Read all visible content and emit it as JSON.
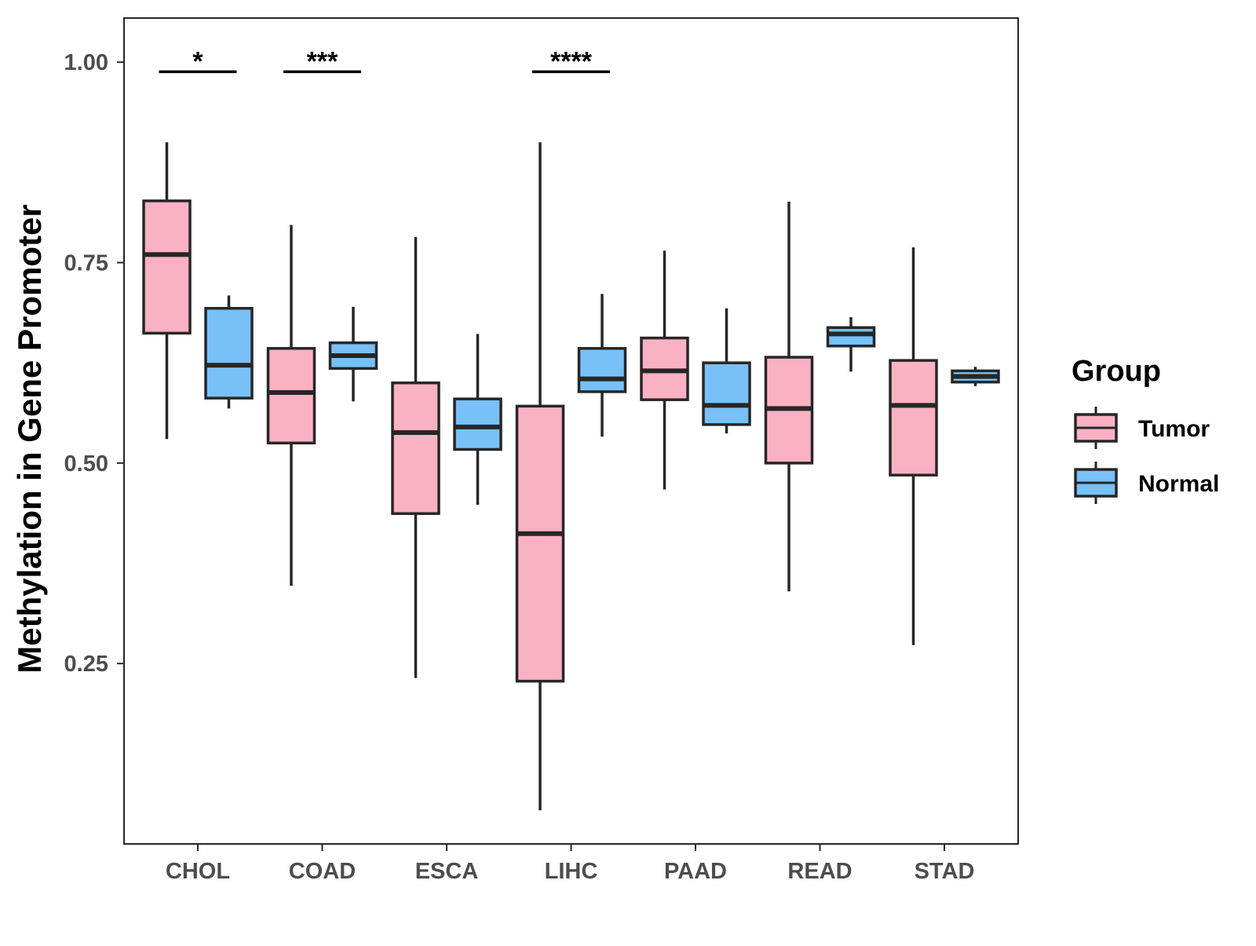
{
  "chart_data": {
    "type": "boxplot",
    "title": "",
    "xlabel": "",
    "ylabel": "Methylation in Gene Promoter",
    "ylim": [
      0.025,
      1.055
    ],
    "yticks": [
      0.25,
      0.5,
      0.75,
      1.0
    ],
    "ytick_labels": [
      "0.25",
      "0.50",
      "0.75",
      "1.00"
    ],
    "grid": false,
    "categories": [
      "CHOL",
      "COAD",
      "ESCA",
      "LIHC",
      "PAAD",
      "READ",
      "STAD"
    ],
    "legend": {
      "title": "Group",
      "position": "right",
      "entries": [
        {
          "name": "Tumor",
          "color": "#FBB1C4"
        },
        {
          "name": "Normal",
          "color": "#77C1F8"
        }
      ]
    },
    "series": [
      {
        "name": "Tumor",
        "color": "#FBB1C4",
        "boxes": [
          {
            "category": "CHOL",
            "whisker_low": 0.53,
            "q1": 0.662,
            "median": 0.76,
            "q3": 0.827,
            "whisker_high": 0.9
          },
          {
            "category": "COAD",
            "whisker_low": 0.347,
            "q1": 0.525,
            "median": 0.588,
            "q3": 0.643,
            "whisker_high": 0.797
          },
          {
            "category": "ESCA",
            "whisker_low": 0.232,
            "q1": 0.437,
            "median": 0.538,
            "q3": 0.6,
            "whisker_high": 0.782
          },
          {
            "category": "LIHC",
            "whisker_low": 0.067,
            "q1": 0.228,
            "median": 0.412,
            "q3": 0.571,
            "whisker_high": 0.9
          },
          {
            "category": "PAAD",
            "whisker_low": 0.467,
            "q1": 0.579,
            "median": 0.615,
            "q3": 0.656,
            "whisker_high": 0.765
          },
          {
            "category": "READ",
            "whisker_low": 0.34,
            "q1": 0.5,
            "median": 0.568,
            "q3": 0.632,
            "whisker_high": 0.826
          },
          {
            "category": "STAD",
            "whisker_low": 0.273,
            "q1": 0.485,
            "median": 0.572,
            "q3": 0.628,
            "whisker_high": 0.769
          }
        ]
      },
      {
        "name": "Normal",
        "color": "#77C1F8",
        "boxes": [
          {
            "category": "CHOL",
            "whisker_low": 0.568,
            "q1": 0.581,
            "median": 0.622,
            "q3": 0.693,
            "whisker_high": 0.709
          },
          {
            "category": "COAD",
            "whisker_low": 0.577,
            "q1": 0.618,
            "median": 0.634,
            "q3": 0.65,
            "whisker_high": 0.695
          },
          {
            "category": "ESCA",
            "whisker_low": 0.448,
            "q1": 0.517,
            "median": 0.545,
            "q3": 0.58,
            "whisker_high": 0.661
          },
          {
            "category": "LIHC",
            "whisker_low": 0.533,
            "q1": 0.589,
            "median": 0.605,
            "q3": 0.643,
            "whisker_high": 0.711
          },
          {
            "category": "PAAD",
            "whisker_low": 0.537,
            "q1": 0.548,
            "median": 0.572,
            "q3": 0.625,
            "whisker_high": 0.693
          },
          {
            "category": "READ",
            "whisker_low": 0.614,
            "q1": 0.646,
            "median": 0.661,
            "q3": 0.669,
            "whisker_high": 0.682
          },
          {
            "category": "STAD",
            "whisker_low": 0.596,
            "q1": 0.601,
            "median": 0.608,
            "q3": 0.615,
            "whisker_high": 0.62
          }
        ]
      }
    ],
    "significance": [
      {
        "category": "CHOL",
        "label": "*",
        "y": 0.988
      },
      {
        "category": "COAD",
        "label": "***",
        "y": 0.988
      },
      {
        "category": "LIHC",
        "label": "****",
        "y": 0.988
      }
    ]
  }
}
